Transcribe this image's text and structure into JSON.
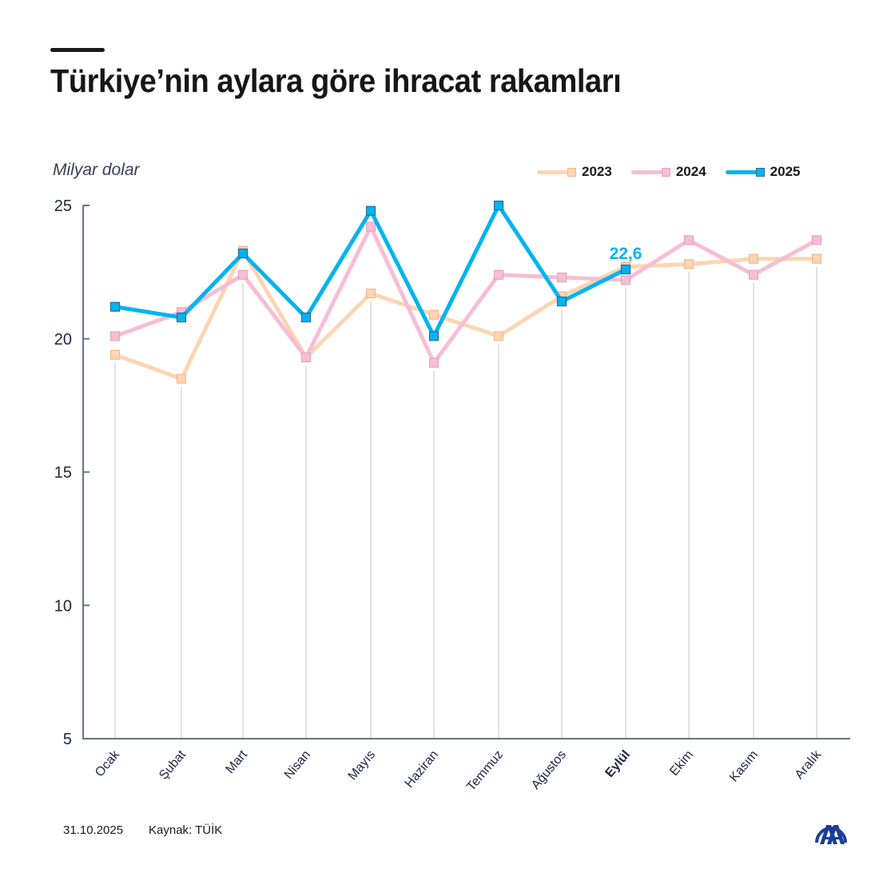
{
  "header": {
    "title": "Türkiye’nin aylara göre ihracat rakamları"
  },
  "footer": {
    "date": "31.10.2025",
    "source": "Kaynak: TÜİK"
  },
  "logo": {
    "icon": "aa-logo-icon",
    "color": "#1b3f99"
  },
  "colors": {
    "2023": "#fcd5b1",
    "2024": "#f7bdd4",
    "2025": "#00b4f0"
  },
  "chart_data": {
    "type": "line",
    "title": "Türkiye’nin aylara göre ihracat rakamları",
    "ylabel": "Milyar dolar",
    "xlabel": "",
    "ylim": [
      5,
      25
    ],
    "yticks": [
      5,
      10,
      15,
      20,
      25
    ],
    "grid": "vertical lines per month",
    "legend_position": "top-right",
    "categories": [
      "Ocak",
      "Şubat",
      "Mart",
      "Nisan",
      "Mayıs",
      "Haziran",
      "Temmuz",
      "Ağustos",
      "Eylül",
      "Ekim",
      "Kasım",
      "Aralık"
    ],
    "highlighted_category": "Eylül",
    "series": [
      {
        "name": "2023",
        "color": "#fcd5b1",
        "values": [
          19.4,
          18.5,
          23.3,
          19.3,
          21.7,
          20.9,
          20.1,
          21.6,
          22.7,
          22.8,
          23.0,
          23.0
        ]
      },
      {
        "name": "2024",
        "color": "#f7bdd4",
        "values": [
          20.1,
          21.0,
          22.4,
          19.3,
          24.2,
          19.1,
          22.4,
          22.3,
          22.2,
          23.7,
          22.4,
          23.7
        ]
      },
      {
        "name": "2025",
        "color": "#00b4f0",
        "values": [
          21.2,
          20.8,
          23.2,
          20.8,
          24.8,
          20.1,
          25.0,
          21.4,
          22.6,
          null,
          null,
          null
        ]
      }
    ],
    "annotations": [
      {
        "series": "2025",
        "category": "Eylül",
        "text": "22,6"
      }
    ]
  }
}
